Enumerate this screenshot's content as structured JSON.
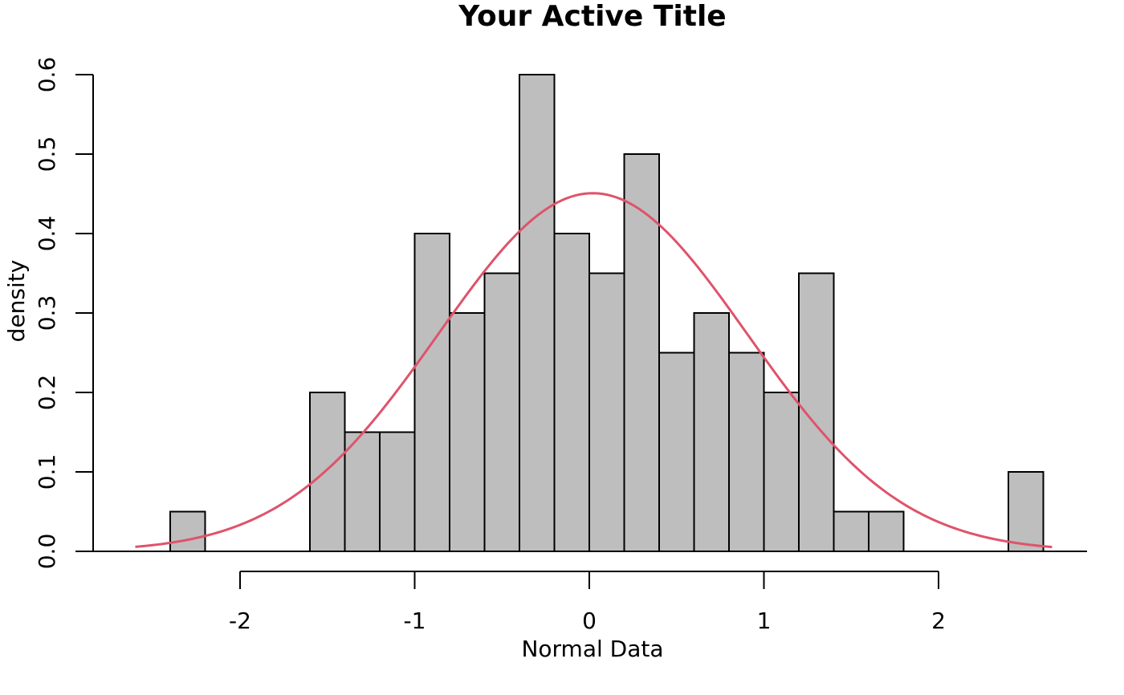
{
  "chart_data": {
    "type": "histogram",
    "title": "Your Active Title",
    "xlabel": "Normal Data",
    "ylabel": "density",
    "bin_width": 0.2,
    "bins": [
      {
        "start": -2.4,
        "end": -2.2,
        "density": 0.05
      },
      {
        "start": -2.2,
        "end": -2.0,
        "density": 0.0
      },
      {
        "start": -2.0,
        "end": -1.8,
        "density": 0.0
      },
      {
        "start": -1.8,
        "end": -1.6,
        "density": 0.0
      },
      {
        "start": -1.6,
        "end": -1.4,
        "density": 0.2
      },
      {
        "start": -1.4,
        "end": -1.2,
        "density": 0.15
      },
      {
        "start": -1.2,
        "end": -1.0,
        "density": 0.15
      },
      {
        "start": -1.0,
        "end": -0.8,
        "density": 0.4
      },
      {
        "start": -0.8,
        "end": -0.6,
        "density": 0.3
      },
      {
        "start": -0.6,
        "end": -0.4,
        "density": 0.35
      },
      {
        "start": -0.4,
        "end": -0.2,
        "density": 0.6
      },
      {
        "start": -0.2,
        "end": 0.0,
        "density": 0.4
      },
      {
        "start": 0.0,
        "end": 0.2,
        "density": 0.35
      },
      {
        "start": 0.2,
        "end": 0.4,
        "density": 0.5
      },
      {
        "start": 0.4,
        "end": 0.6,
        "density": 0.25
      },
      {
        "start": 0.6,
        "end": 0.8,
        "density": 0.3
      },
      {
        "start": 0.8,
        "end": 1.0,
        "density": 0.25
      },
      {
        "start": 1.0,
        "end": 1.2,
        "density": 0.2
      },
      {
        "start": 1.2,
        "end": 1.4,
        "density": 0.35
      },
      {
        "start": 1.4,
        "end": 1.6,
        "density": 0.05
      },
      {
        "start": 1.6,
        "end": 1.8,
        "density": 0.05
      },
      {
        "start": 1.8,
        "end": 2.0,
        "density": 0.0
      },
      {
        "start": 2.0,
        "end": 2.2,
        "density": 0.0
      },
      {
        "start": 2.2,
        "end": 2.4,
        "density": 0.0
      },
      {
        "start": 2.4,
        "end": 2.6,
        "density": 0.1
      }
    ],
    "density_curve": {
      "type": "normal",
      "mean": 0.02,
      "sd": 0.885,
      "x_range": [
        -2.6,
        2.65
      ],
      "color": "#df536b"
    },
    "bar_fill": "#bebebe",
    "bar_stroke": "#000000",
    "x_ticks": [
      -2,
      -1,
      0,
      1,
      2
    ],
    "x_tick_labels": [
      "-2",
      "-1",
      "0",
      "1",
      "2"
    ],
    "y_ticks": [
      0.0,
      0.1,
      0.2,
      0.3,
      0.4,
      0.5,
      0.6
    ],
    "y_tick_labels": [
      "0.0",
      "0.1",
      "0.2",
      "0.3",
      "0.4",
      "0.5",
      "0.6"
    ],
    "xlim": [
      -2.85,
      2.85
    ],
    "ylim": [
      0,
      0.6
    ],
    "grid": false,
    "legend": "none"
  }
}
